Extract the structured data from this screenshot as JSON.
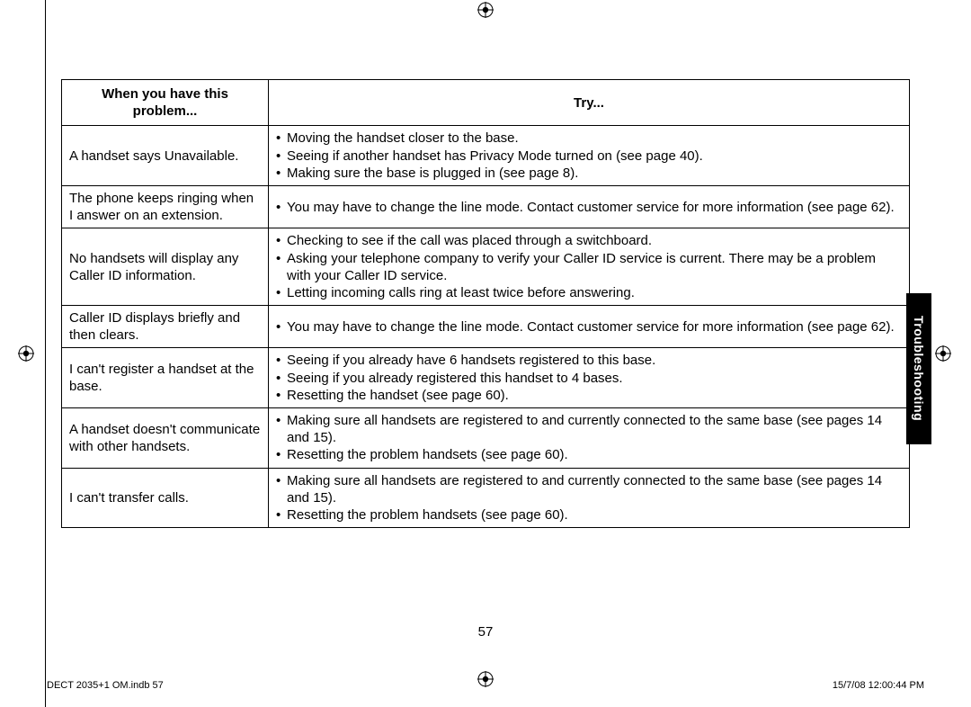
{
  "page": {
    "number": "57",
    "section_tab": "Troubleshooting",
    "footer_left": "DECT 2035+1 OM.indb   57",
    "footer_right": "15/7/08   12:00:44 PM"
  },
  "table": {
    "header_problem": "When you have this problem...",
    "header_try": "Try...",
    "rows": [
      {
        "problem": "A handset says Unavailable.",
        "try": [
          "Moving the handset closer to the base.",
          "Seeing if another handset has Privacy Mode turned on (see page 40).",
          "Making sure the base is plugged in (see page 8)."
        ]
      },
      {
        "problem": "The phone keeps ringing when I answer on an extension.",
        "try": [
          "You may have to change the line mode. Contact customer service for more information (see page 62)."
        ]
      },
      {
        "problem": "No handsets will display any Caller ID information.",
        "try": [
          "Checking to see if the call was placed through a switchboard.",
          "Asking your telephone company to verify your Caller ID service is current. There may be a problem with your Caller ID service.",
          "Letting incoming calls ring at least twice before answering."
        ]
      },
      {
        "problem": "Caller ID displays briefly and then clears.",
        "try": [
          "You may have to change the line mode. Contact customer service for more information (see page 62)."
        ]
      },
      {
        "problem": "I can't register a handset at the base.",
        "try": [
          "Seeing if you already have 6 handsets registered to this base.",
          "Seeing if you already registered this handset to 4 bases.",
          "Resetting the handset (see page 60)."
        ]
      },
      {
        "problem": "A handset doesn't communicate with other handsets.",
        "try": [
          "Making sure all handsets are registered to and currently connected to the same base (see pages 14 and 15).",
          "Resetting the problem handsets (see page 60)."
        ]
      },
      {
        "problem": "I can't transfer calls.",
        "try": [
          "Making sure all handsets are registered to and currently connected to the same base (see pages 14 and 15).",
          "Resetting the problem handsets (see page 60)."
        ]
      }
    ]
  }
}
